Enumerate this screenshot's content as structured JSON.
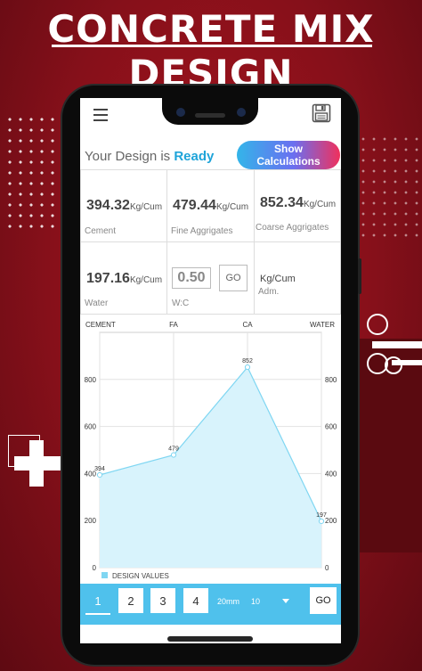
{
  "banner": {
    "line1": "CONCRETE MIX",
    "line2": "DESIGN"
  },
  "header": {
    "menu_icon": "hamburger-menu-icon",
    "save_icon": "floppy-disk-icon"
  },
  "status": {
    "prefix": "Your Design is",
    "state": "Ready"
  },
  "calc_button": "Show Calculations",
  "results": {
    "cement": {
      "value": "394.32",
      "unit": "Kg/Cum",
      "label": "Cement"
    },
    "fine": {
      "value": "479.44",
      "unit": "Kg/Cum",
      "label": "Fine Aggrigates"
    },
    "coarse": {
      "value": "852.34",
      "unit": "Kg/Cum",
      "label": "Coarse Aggrigates"
    },
    "water": {
      "value": "197.16",
      "unit": "Kg/Cum",
      "label": "Water"
    },
    "wc": {
      "value": "0.50",
      "label": "W:C",
      "go": "GO"
    },
    "adm": {
      "unit": "Kg/Cum",
      "label": "Adm."
    }
  },
  "chart_data": {
    "type": "area",
    "categories": [
      "CEMENT",
      "FA",
      "CA",
      "WATER"
    ],
    "series": [
      {
        "name": "DESIGN VALUES",
        "values": [
          394,
          479,
          852,
          197
        ]
      }
    ],
    "data_labels": [
      "394",
      "479",
      "852",
      "197"
    ],
    "ylim": [
      0,
      1000
    ],
    "yticks": [
      "0",
      "200",
      "400",
      "600",
      "800"
    ],
    "grid": true,
    "legend": "bottom-left",
    "fill_color": "#d8f3fc",
    "line_color": "#7fd6f2"
  },
  "bottom_bar": {
    "pages": [
      "1",
      "2",
      "3",
      "4"
    ],
    "active_page": "1",
    "size_label": "20mm",
    "size_value": "10",
    "go": "GO"
  },
  "colors": {
    "accent": "#4fc1ec",
    "ready": "#1fa4d9",
    "background": "#8c101a"
  }
}
